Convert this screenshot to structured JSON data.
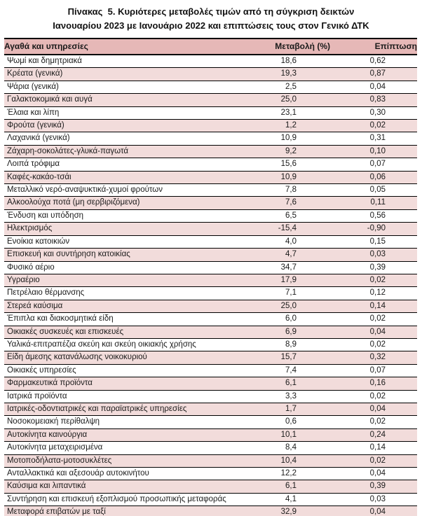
{
  "title": {
    "line1": "Πίνακας  5. Κυριότερες μεταβολές τιμών από τη σύγκριση δεικτών",
    "line2": "Ιανουαρίου 2023 με Ιανουάριο 2022 και επιπτώσεις τους στον Γενικό ΔΤΚ"
  },
  "table": {
    "columns": [
      "Αγαθά και υπηρεσίες",
      "Μεταβολή (%)",
      "Επίπτωση"
    ],
    "rows": [
      {
        "name": "Ψωμί και δημητριακά",
        "change": "18,6",
        "impact": "0,62"
      },
      {
        "name": "Κρέατα (γενικά)",
        "change": "19,3",
        "impact": "0,87"
      },
      {
        "name": "Ψάρια (γενικά)",
        "change": "2,5",
        "impact": "0,04"
      },
      {
        "name": "Γαλακτοκομικά και αυγά",
        "change": "25,0",
        "impact": "0,83"
      },
      {
        "name": "Έλαια και λίπη",
        "change": "23,1",
        "impact": "0,30"
      },
      {
        "name": "Φρούτα (γενικά)",
        "change": "1,2",
        "impact": "0,02"
      },
      {
        "name": "Λαχανικά (γενικά)",
        "change": "10,9",
        "impact": "0,31"
      },
      {
        "name": "Ζάχαρη-σοκολάτες-γλυκά-παγωτά",
        "change": "9,2",
        "impact": "0,10"
      },
      {
        "name": "Λοιπά τρόφιμα",
        "change": "15,6",
        "impact": "0,07"
      },
      {
        "name": "Καφές-κακάο-τσάι",
        "change": "10,9",
        "impact": "0,06"
      },
      {
        "name": "Μεταλλικό νερό-αναψυκτικά-χυμοί φρούτων",
        "change": "7,8",
        "impact": "0,05"
      },
      {
        "name": "Αλκοολούχα ποτά (μη σερβιριζόμενα)",
        "change": "7,6",
        "impact": "0,11"
      },
      {
        "name": "Ένδυση και υπόδηση",
        "change": "6,5",
        "impact": "0,56"
      },
      {
        "name": "Ηλεκτρισμός",
        "change": "-15,4",
        "impact": "-0,90"
      },
      {
        "name": "Ενοίκια κατοικιών",
        "change": "4,0",
        "impact": "0,15"
      },
      {
        "name": "Επισκευή και συντήρηση κατοικίας",
        "change": "4,7",
        "impact": "0,03"
      },
      {
        "name": "Φυσικό αέριο",
        "change": "34,7",
        "impact": "0,39"
      },
      {
        "name": "Υγραέριο",
        "change": "17,9",
        "impact": "0,02"
      },
      {
        "name": "Πετρέλαιο θέρμανσης",
        "change": "7,1",
        "impact": "0,12"
      },
      {
        "name": "Στερεά καύσιμα",
        "change": "25,0",
        "impact": "0,14"
      },
      {
        "name": "Έπιπλα και διακοσμητικά είδη",
        "change": "6,0",
        "impact": "0,02"
      },
      {
        "name": "Οικιακές συσκευές και επισκευές",
        "change": "6,9",
        "impact": "0,04"
      },
      {
        "name": "Υαλικά-επιτραπέζια σκεύη και σκεύη οικιακής χρήσης",
        "change": "8,9",
        "impact": "0,02"
      },
      {
        "name": "Είδη άμεσης κατανάλωσης νοικοκυριού",
        "change": "15,7",
        "impact": "0,32"
      },
      {
        "name": "Οικιακές υπηρεσίες",
        "change": "7,4",
        "impact": "0,07"
      },
      {
        "name": "Φαρμακευτικά προϊόντα",
        "change": "6,1",
        "impact": "0,16"
      },
      {
        "name": "Ιατρικά προϊόντα",
        "change": "3,3",
        "impact": "0,02"
      },
      {
        "name": "Ιατρικές-οδοντιατρικές και παραϊατρικές υπηρεσίες",
        "change": "1,7",
        "impact": "0,04"
      },
      {
        "name": "Νοσοκομειακή περίθαλψη",
        "change": "0,6",
        "impact": "0,02"
      },
      {
        "name": "Αυτοκίνητα καινούργια",
        "change": "10,1",
        "impact": "0,24"
      },
      {
        "name": "Αυτοκίνητα μεταχειρισμένα",
        "change": "8,4",
        "impact": "0,14"
      },
      {
        "name": "Μοτοποδήλατα-μοτοσυκλέτες",
        "change": "10,4",
        "impact": "0,02"
      },
      {
        "name": "Ανταλλακτικά και αξεσουάρ αυτοκινήτου",
        "change": "12,2",
        "impact": "0,04"
      },
      {
        "name": "Καύσιμα και λιπαντικά",
        "change": "6,1",
        "impact": "0,39"
      },
      {
        "name": "Συντήρηση και επισκευή εξοπλισμού προσωπικής μεταφοράς",
        "change": "4,1",
        "impact": "0,03"
      },
      {
        "name": "Μεταφορά επιβατών με ταξί",
        "change": "32,9",
        "impact": "0,04"
      }
    ]
  },
  "colors": {
    "header_bg": "#E6B8B7",
    "stripe_bg": "#F2DCDB",
    "border": "#000000",
    "text": "#1A1A1A"
  }
}
